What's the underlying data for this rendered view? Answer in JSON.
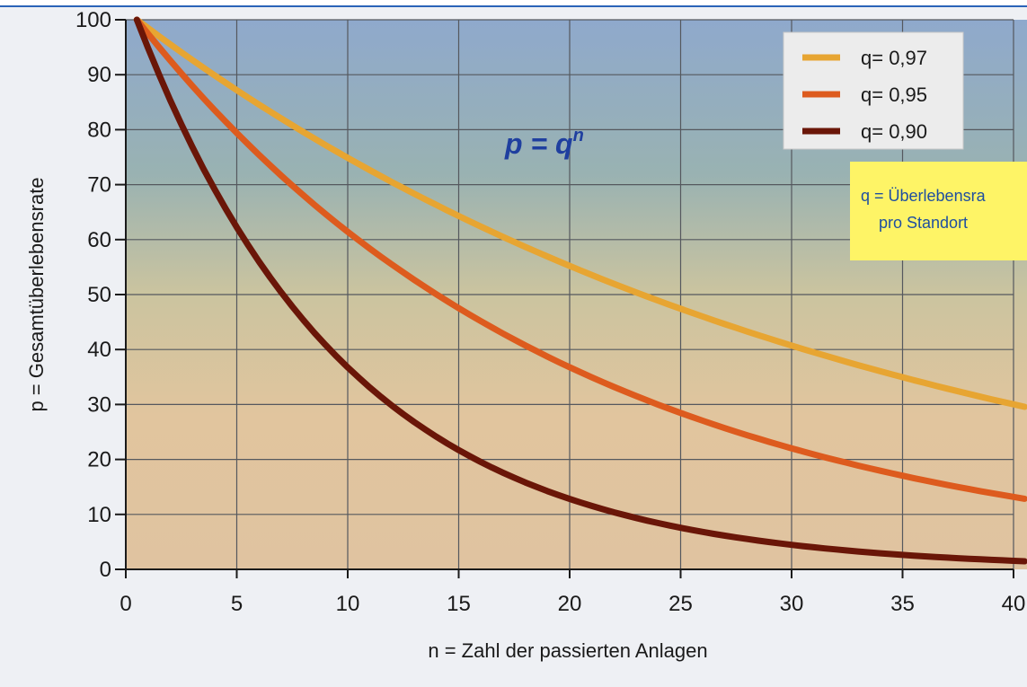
{
  "chart_data": {
    "type": "line",
    "title": "",
    "xlabel": "n = Zahl der passierten Anlagen",
    "ylabel": "p = Gesamtüberlebensrate",
    "xlim": [
      0,
      40
    ],
    "ylim": [
      0,
      100
    ],
    "x_ticks": [
      0,
      5,
      10,
      15,
      20,
      25,
      30,
      35,
      40
    ],
    "y_ticks": [
      0,
      10,
      20,
      30,
      40,
      50,
      60,
      70,
      80,
      90,
      100
    ],
    "grid": true,
    "legend_position": "top-right",
    "formula": {
      "base": "p = q",
      "exponent": "n"
    },
    "note": [
      "q = Überlebensra",
      "pro Standort"
    ],
    "series": [
      {
        "name": "q= 0,97",
        "color": "#e7a532",
        "q": 0.97,
        "x": [
          0,
          5,
          10,
          15,
          20,
          25,
          30,
          35,
          40
        ],
        "values": [
          100,
          86,
          74,
          63,
          54,
          47,
          40,
          34,
          29
        ]
      },
      {
        "name": "q= 0,95",
        "color": "#dd5b1e",
        "q": 0.95,
        "x": [
          0,
          5,
          10,
          15,
          20,
          25,
          30,
          35,
          40
        ],
        "values": [
          100,
          77,
          60,
          46,
          36,
          28,
          21,
          17,
          13
        ]
      },
      {
        "name": "q= 0,90",
        "color": "#6a1608",
        "q": 0.9,
        "x": [
          0,
          5,
          10,
          15,
          20,
          25,
          30,
          35,
          40
        ],
        "values": [
          100,
          59,
          35,
          21,
          12,
          7,
          4,
          2,
          1.5
        ]
      }
    ]
  }
}
